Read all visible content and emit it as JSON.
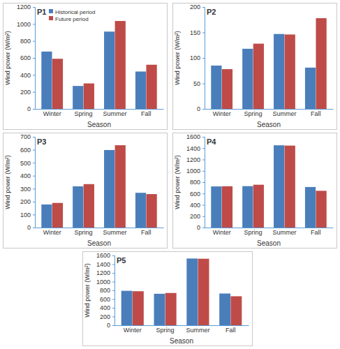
{
  "chart_data": [
    {
      "type": "bar",
      "title": "P1",
      "x_label": "Season",
      "y_label": "Wind power (W/m²)",
      "categories": [
        "Winter",
        "Spring",
        "Summer",
        "Fall"
      ],
      "series": [
        {
          "name": "Historical period",
          "color": "#4a7ebb",
          "values": [
            675,
            270,
            910,
            440
          ]
        },
        {
          "name": "Future period",
          "color": "#be4b48",
          "values": [
            590,
            300,
            1035,
            520
          ]
        }
      ],
      "ylim": [
        0,
        1200
      ],
      "yticks": [
        0,
        200,
        400,
        600,
        800,
        1000,
        1200
      ],
      "legend": "upper left"
    },
    {
      "type": "bar",
      "title": "P2",
      "x_label": "Season",
      "y_label": "Wind power (W/m²)",
      "categories": [
        "Winter",
        "Spring",
        "Summer",
        "Fall"
      ],
      "series": [
        {
          "name": "Historical period",
          "color": "#4a7ebb",
          "values": [
            85,
            118,
            147,
            81
          ]
        },
        {
          "name": "Future period",
          "color": "#be4b48",
          "values": [
            78,
            128,
            146,
            178
          ]
        }
      ],
      "ylim": [
        0,
        200
      ],
      "yticks": [
        0,
        50,
        100,
        150,
        200
      ]
    },
    {
      "type": "bar",
      "title": "P3",
      "x_label": "Season",
      "y_label": "Wind power (W/m²)",
      "categories": [
        "Winter",
        "Spring",
        "Summer",
        "Fall"
      ],
      "series": [
        {
          "name": "Historical period",
          "color": "#4a7ebb",
          "values": [
            178,
            318,
            598,
            268
          ]
        },
        {
          "name": "Future period",
          "color": "#be4b48",
          "values": [
            190,
            335,
            635,
            258
          ]
        }
      ],
      "ylim": [
        0,
        700
      ],
      "yticks": [
        0,
        100,
        200,
        300,
        400,
        500,
        600,
        700
      ]
    },
    {
      "type": "bar",
      "title": "P4",
      "x_label": "Season",
      "y_label": "Wind power (W/m²)",
      "categories": [
        "Winter",
        "Spring",
        "Summer",
        "Fall"
      ],
      "series": [
        {
          "name": "Historical period",
          "color": "#4a7ebb",
          "values": [
            725,
            730,
            1450,
            715
          ]
        },
        {
          "name": "Future period",
          "color": "#be4b48",
          "values": [
            728,
            755,
            1445,
            648
          ]
        }
      ],
      "ylim": [
        0,
        1600
      ],
      "yticks": [
        0,
        200,
        400,
        600,
        800,
        1000,
        1200,
        1400,
        1600
      ]
    },
    {
      "type": "bar",
      "title": "P5",
      "x_label": "Season",
      "y_label": "Wind power (W/m²)",
      "categories": [
        "Winter",
        "Spring",
        "Summer",
        "Fall"
      ],
      "series": [
        {
          "name": "Historical period",
          "color": "#4a7ebb",
          "values": [
            790,
            722,
            1530,
            728
          ]
        },
        {
          "name": "Future period",
          "color": "#be4b48",
          "values": [
            780,
            740,
            1525,
            665
          ]
        }
      ],
      "ylim": [
        0,
        1600
      ],
      "yticks": [
        0,
        200,
        400,
        600,
        800,
        1000,
        1200,
        1400,
        1600
      ]
    }
  ]
}
